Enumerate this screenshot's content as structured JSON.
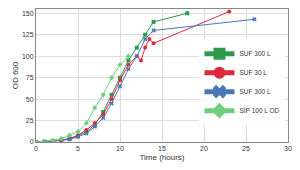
{
  "chart_data": {
    "type": "line",
    "x_label": "Time (hours)",
    "y_label": "OD 600",
    "xlim": [
      0,
      30
    ],
    "xticks": [
      0,
      5,
      10,
      15,
      20,
      25,
      30
    ],
    "ylim": [
      0,
      155
    ],
    "yticks": [
      0,
      25,
      50,
      75,
      100,
      125,
      150
    ],
    "grid": true,
    "legend": "right",
    "series": [
      {
        "name": "SUF 300 L",
        "color": "#2e9a4e",
        "marker": "square",
        "line_style": "solid",
        "x": [
          0,
          1,
          2,
          3,
          4,
          5,
          6,
          7,
          8,
          9,
          10,
          11,
          12,
          13,
          14,
          18
        ],
        "values": [
          0,
          0.5,
          1,
          2,
          4,
          7,
          12,
          20,
          35,
          55,
          75,
          95,
          110,
          125,
          140,
          150
        ]
      },
      {
        "name": "SUF 30 L",
        "color": "#e0283c",
        "marker": "circle",
        "line_style": "solid",
        "x": [
          0,
          2,
          3,
          4,
          5,
          6,
          7,
          8,
          9,
          10,
          11,
          12,
          12.5,
          13,
          13.5,
          14,
          23
        ],
        "values": [
          0,
          1,
          2,
          4,
          8,
          14,
          22,
          32,
          50,
          72,
          90,
          100,
          95,
          110,
          120,
          115,
          152
        ]
      },
      {
        "name": "SUF 300 L",
        "color": "#4a78b5",
        "marker": "x",
        "line_style": "solid",
        "x": [
          0,
          2,
          4,
          5,
          6,
          7,
          8,
          9,
          10,
          11,
          12,
          13,
          14,
          26
        ],
        "values": [
          0,
          1,
          3,
          6,
          10,
          18,
          28,
          45,
          65,
          85,
          100,
          120,
          130,
          143
        ]
      },
      {
        "name": "SIP 100 L OD",
        "color": "#6fcf7f",
        "marker": "diamond",
        "line_style": "solid",
        "x": [
          0,
          2,
          3,
          4,
          5,
          6,
          7,
          8,
          9,
          10,
          11
        ],
        "values": [
          0,
          2,
          4,
          8,
          12,
          22,
          40,
          55,
          75,
          90,
          100
        ]
      }
    ]
  }
}
